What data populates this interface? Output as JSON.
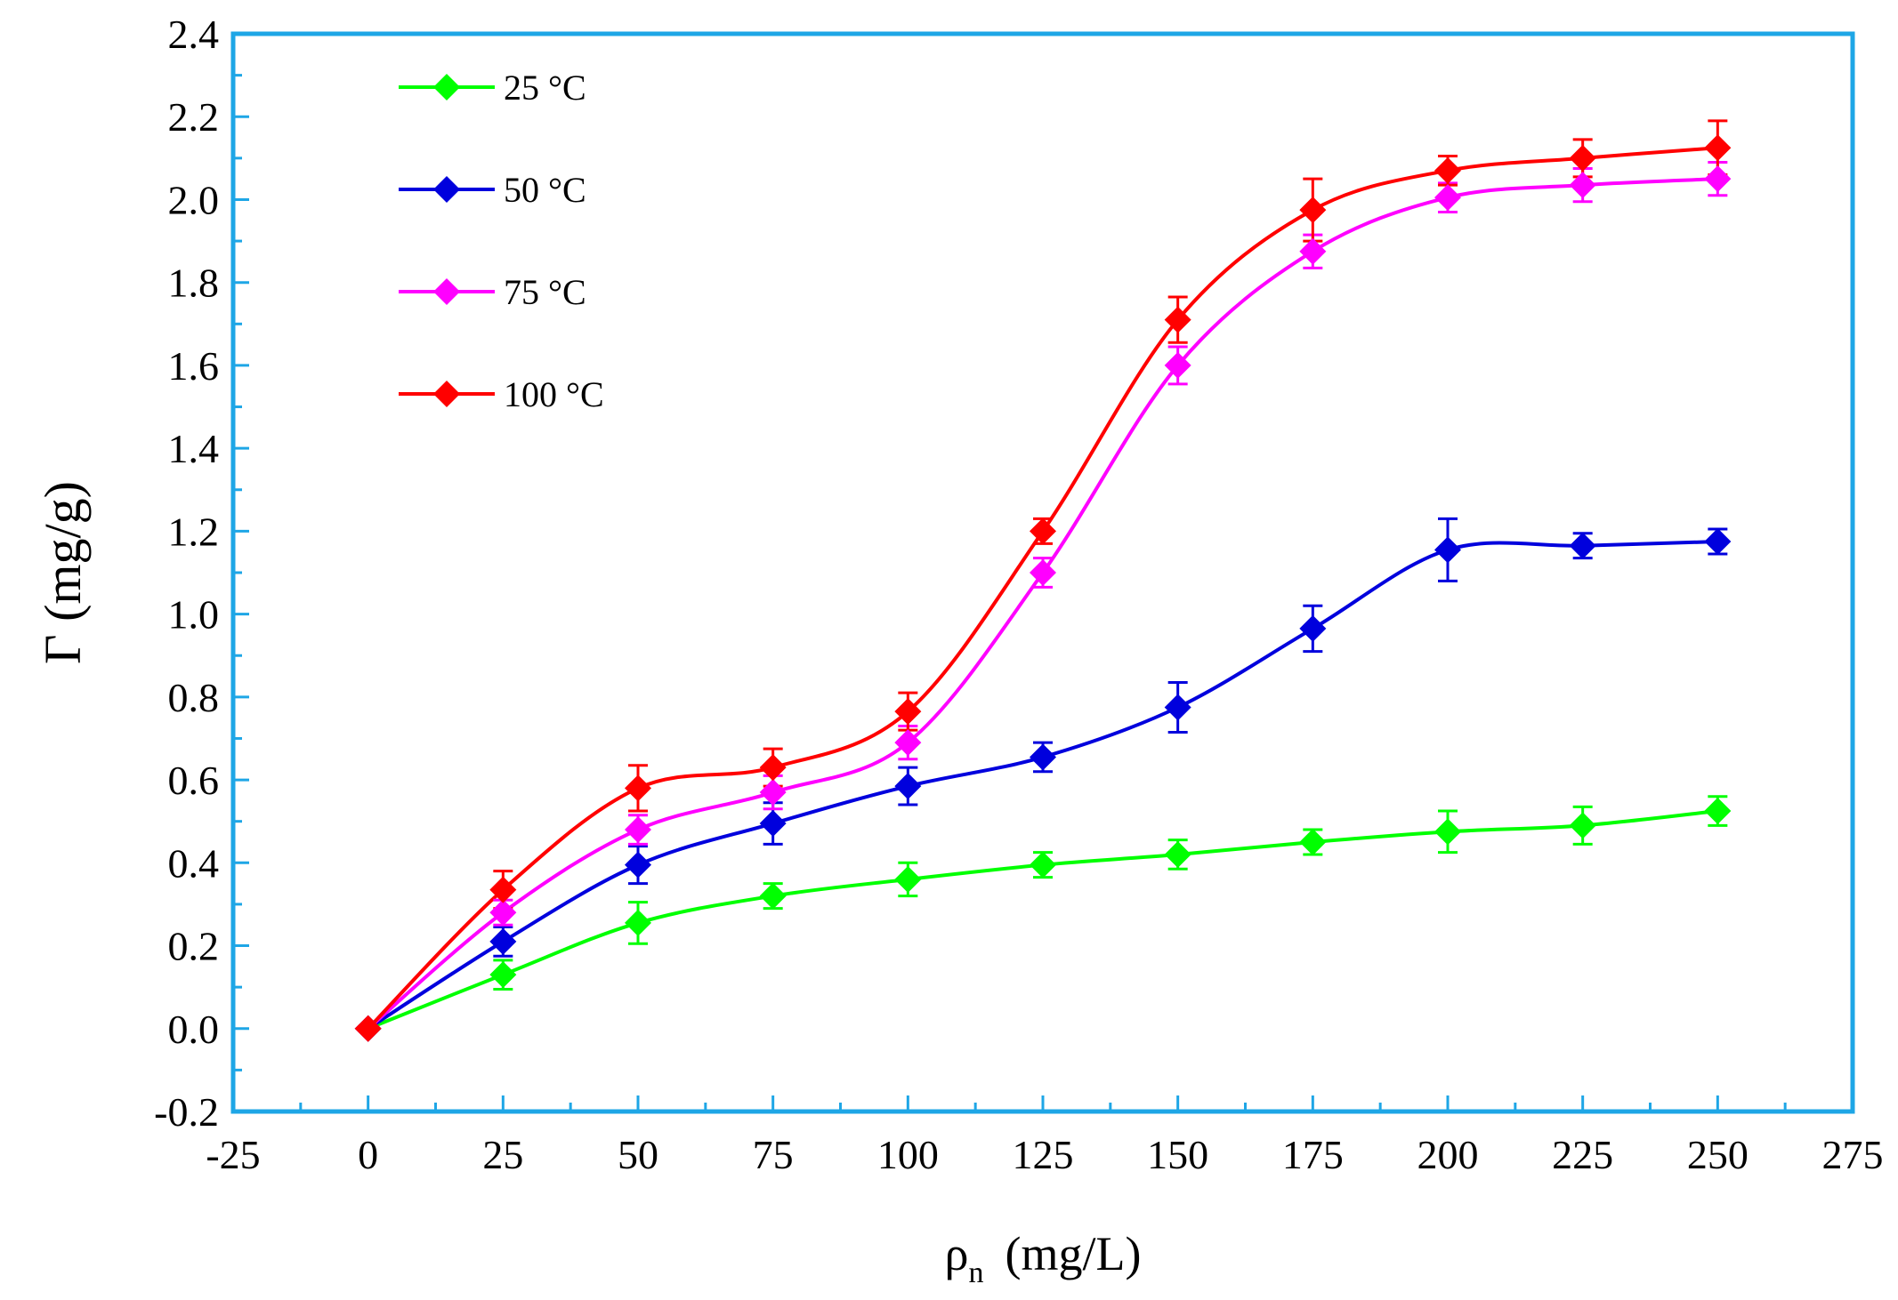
{
  "chart_data": {
    "type": "line",
    "title": "",
    "xlabel": "ρ",
    "xlabel_sub": "n",
    "xlabel_units": "(mg/L)",
    "ylabel": "Γ (mg/g)",
    "xlim": [
      -25,
      275
    ],
    "ylim": [
      -0.2,
      2.4
    ],
    "x_ticks": [
      -25,
      0,
      25,
      50,
      75,
      100,
      125,
      150,
      175,
      200,
      225,
      250,
      275
    ],
    "y_ticks": [
      -0.2,
      0.0,
      0.2,
      0.4,
      0.6,
      0.8,
      1.0,
      1.2,
      1.4,
      1.6,
      1.8,
      2.0,
      2.2,
      2.4
    ],
    "x_tick_labels": [
      "-25",
      "0",
      "25",
      "50",
      "75",
      "100",
      "125",
      "150",
      "175",
      "200",
      "225",
      "250",
      "275"
    ],
    "y_tick_labels": [
      "-0.2",
      "0.0",
      "0.2",
      "0.4",
      "0.6",
      "0.8",
      "1.0",
      "1.2",
      "1.4",
      "1.6",
      "1.8",
      "2.0",
      "2.2",
      "2.4"
    ],
    "x": [
      0,
      25,
      50,
      75,
      100,
      125,
      150,
      175,
      200,
      225,
      250
    ],
    "series": [
      {
        "name": "25 °C",
        "color": "#00ff00",
        "values": [
          0.0,
          0.13,
          0.255,
          0.32,
          0.36,
          0.395,
          0.42,
          0.45,
          0.475,
          0.49,
          0.525
        ],
        "errors": [
          0.0,
          0.035,
          0.05,
          0.03,
          0.04,
          0.03,
          0.035,
          0.03,
          0.05,
          0.045,
          0.035
        ]
      },
      {
        "name": "50 °C",
        "color": "#0000dd",
        "values": [
          0.0,
          0.21,
          0.395,
          0.495,
          0.585,
          0.655,
          0.775,
          0.965,
          1.155,
          1.165,
          1.175
        ],
        "errors": [
          0.0,
          0.035,
          0.045,
          0.05,
          0.045,
          0.035,
          0.06,
          0.055,
          0.075,
          0.03,
          0.03
        ]
      },
      {
        "name": "75 °C",
        "color": "#ff00ff",
        "values": [
          0.0,
          0.28,
          0.48,
          0.57,
          0.69,
          1.1,
          1.6,
          1.875,
          2.005,
          2.035,
          2.05
        ],
        "errors": [
          0.0,
          0.03,
          0.035,
          0.04,
          0.04,
          0.035,
          0.045,
          0.04,
          0.035,
          0.04,
          0.04
        ]
      },
      {
        "name": "100 °C",
        "color": "#ff0000",
        "values": [
          0.0,
          0.335,
          0.58,
          0.63,
          0.765,
          1.2,
          1.71,
          1.975,
          2.07,
          2.1,
          2.125
        ],
        "errors": [
          0.0,
          0.045,
          0.055,
          0.045,
          0.045,
          0.03,
          0.055,
          0.075,
          0.035,
          0.045,
          0.065
        ]
      }
    ],
    "legend_position": "top-left",
    "grid": false
  }
}
